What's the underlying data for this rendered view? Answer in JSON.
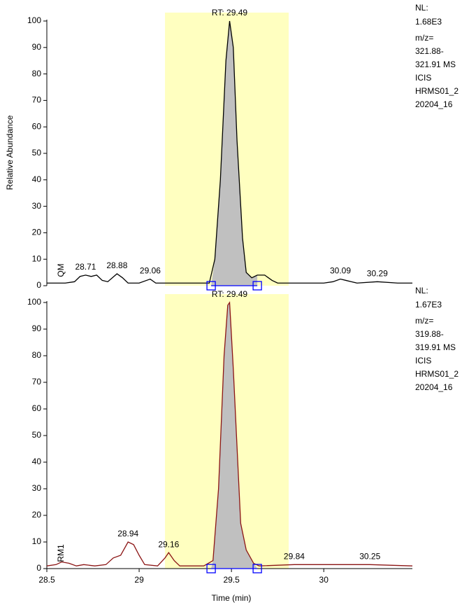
{
  "chart_data": [
    {
      "type": "line",
      "y_label": "Relative Abundance",
      "xlim": [
        28.5,
        30.48
      ],
      "ylim": [
        0,
        100
      ],
      "yticks": [
        0,
        10,
        20,
        30,
        40,
        50,
        60,
        70,
        80,
        90,
        100
      ],
      "highlight_range": [
        29.14,
        29.81
      ],
      "highlight_color": "#ffffc0",
      "peak_range": [
        29.39,
        29.64
      ],
      "peak_fill": "#c0c0c0",
      "marker_color": "#0000ff",
      "x": [
        28.5,
        28.6,
        28.65,
        28.68,
        28.71,
        28.74,
        28.77,
        28.8,
        28.83,
        28.88,
        28.91,
        28.94,
        29.0,
        29.06,
        29.09,
        29.2,
        29.38,
        29.41,
        29.44,
        29.47,
        29.49,
        29.51,
        29.53,
        29.56,
        29.58,
        29.61,
        29.64,
        29.68,
        29.72,
        29.75,
        30.0,
        30.05,
        30.09,
        30.12,
        30.15,
        30.18,
        30.29,
        30.4,
        30.48
      ],
      "series": [
        {
          "name": "QM",
          "color": "#000000",
          "values": [
            1,
            1,
            1.5,
            3.5,
            4,
            3.5,
            4,
            2,
            1.5,
            4.5,
            3,
            1,
            1,
            2.5,
            1,
            1,
            1,
            10,
            40,
            85,
            100,
            90,
            55,
            18,
            5,
            3,
            4,
            4,
            2,
            1,
            1,
            1.5,
            2.5,
            2,
            1.5,
            1,
            1.5,
            1,
            1
          ]
        }
      ],
      "annotations": [
        {
          "label": "RT: 29.49",
          "x": 29.49,
          "y": 100
        },
        {
          "label": "28.71",
          "x": 28.71,
          "y": 4
        },
        {
          "label": "28.88",
          "x": 28.88,
          "y": 4.5
        },
        {
          "label": "29.06",
          "x": 29.06,
          "y": 2.5
        },
        {
          "label": "30.09",
          "x": 30.09,
          "y": 2.5
        },
        {
          "label": "30.29",
          "x": 30.29,
          "y": 1.5
        }
      ],
      "info": [
        "NL:",
        "1.68E3",
        "m/z=",
        "321.88-",
        "321.91 MS",
        "ICIS",
        "HRMS01_2",
        "20204_16"
      ]
    },
    {
      "type": "line",
      "x_label": "Time (min)",
      "xlim": [
        28.5,
        30.48
      ],
      "xticks": [
        28.5,
        29.0,
        29.5,
        30.0
      ],
      "ylim": [
        0,
        100
      ],
      "yticks": [
        0,
        10,
        20,
        30,
        40,
        50,
        60,
        70,
        80,
        90,
        100
      ],
      "highlight_range": [
        29.14,
        29.81
      ],
      "highlight_color": "#ffffc0",
      "peak_range": [
        29.39,
        29.64
      ],
      "peak_fill": "#c0c0c0",
      "marker_color": "#0000ff",
      "x": [
        28.5,
        28.55,
        28.58,
        28.62,
        28.66,
        28.7,
        28.76,
        28.82,
        28.86,
        28.9,
        28.94,
        28.97,
        29.0,
        29.03,
        29.1,
        29.14,
        29.16,
        29.19,
        29.22,
        29.35,
        29.4,
        29.43,
        29.46,
        29.48,
        29.49,
        29.51,
        29.55,
        29.58,
        29.62,
        29.65,
        29.84,
        30.0,
        30.25,
        30.48
      ],
      "series": [
        {
          "name": "RM1",
          "color": "#8b1414",
          "values": [
            1,
            1.5,
            2.5,
            2,
            1,
            1.5,
            1,
            1.5,
            4,
            5,
            10,
            9,
            5,
            1.5,
            1,
            4,
            6,
            3,
            1,
            1,
            3,
            30,
            80,
            99,
            100,
            75,
            17,
            7,
            2,
            1,
            1.5,
            1.5,
            1.5,
            1
          ]
        }
      ],
      "annotations": [
        {
          "label": "RT: 29.49",
          "x": 29.49,
          "y": 100
        },
        {
          "label": "28.94",
          "x": 28.94,
          "y": 10
        },
        {
          "label": "29.16",
          "x": 29.16,
          "y": 6
        },
        {
          "label": "29.84",
          "x": 29.84,
          "y": 1.5
        },
        {
          "label": "30.25",
          "x": 30.25,
          "y": 1.5
        }
      ],
      "info": [
        "NL:",
        "1.67E3",
        "m/z=",
        "319.88-",
        "319.91 MS",
        "ICIS",
        "HRMS01_2",
        "20204_16"
      ]
    }
  ]
}
